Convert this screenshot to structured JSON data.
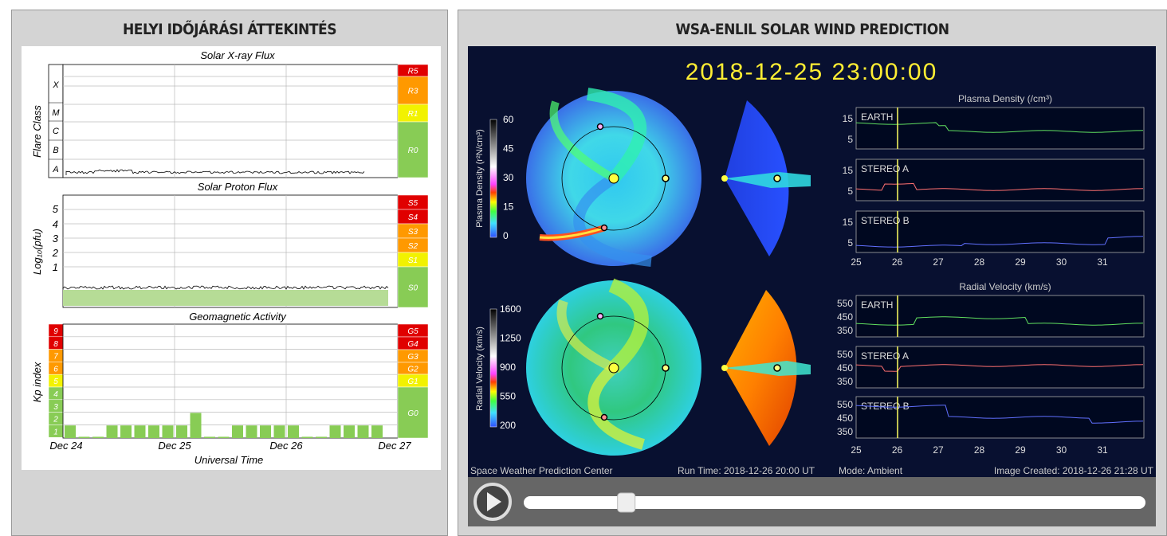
{
  "left_panel": {
    "title": "HELYI IDŐJÁRÁSI ÁTTEKINTÉS",
    "xray": {
      "title": "Solar X-ray Flux",
      "ylabel": "Flare Class",
      "classes": [
        "X",
        "M",
        "C",
        "B",
        "A"
      ],
      "scale": [
        "R5",
        "R3",
        "R1",
        "R0"
      ]
    },
    "proton": {
      "title": "Solar Proton Flux",
      "ylabel": "Log₁₀(pfu)",
      "ticks": [
        "5",
        "4",
        "3",
        "2",
        "1"
      ],
      "scale": [
        "S5",
        "S4",
        "S3",
        "S2",
        "S1",
        "S0"
      ]
    },
    "geomag": {
      "title": "Geomagnetic Activity",
      "ylabel": "Kp index",
      "levels": [
        "9",
        "8",
        "7",
        "6",
        "5",
        "4",
        "3",
        "2",
        "1"
      ],
      "scale": [
        "G5",
        "G4",
        "G3",
        "G2",
        "G1",
        "G0"
      ]
    },
    "x_ticks": [
      "Dec 24",
      "Dec 25",
      "Dec 26",
      "Dec 27"
    ],
    "xlabel": "Universal Time",
    "colors": {
      "red": "#e00000",
      "orange": "#ff9900",
      "yellow": "#f2f200",
      "green": "#88cc55"
    }
  },
  "right_panel": {
    "title": "WSA-ENLIL SOLAR WIND PREDICTION",
    "timestamp": "2018-12-25 23:00:00",
    "density_cbar": {
      "label": "Plasma Density (r²N/cm³)",
      "ticks": [
        "60",
        "45",
        "30",
        "15",
        "0"
      ]
    },
    "velocity_cbar": {
      "label": "Radial Velocity (km/s)",
      "ticks": [
        "1600",
        "1250",
        "900",
        "550",
        "200"
      ]
    },
    "density_title": "Plasma Density (/cm³)",
    "velocity_title": "Radial Velocity (km/s)",
    "density_rows": [
      {
        "name": "EARTH",
        "ticks": [
          "15",
          "5"
        ]
      },
      {
        "name": "STEREO A",
        "ticks": [
          "15",
          "5"
        ]
      },
      {
        "name": "STEREO B",
        "ticks": [
          "15",
          "5"
        ]
      }
    ],
    "velocity_rows": [
      {
        "name": "EARTH",
        "ticks": [
          "550",
          "450",
          "350"
        ]
      },
      {
        "name": "STEREO A",
        "ticks": [
          "550",
          "450",
          "350"
        ]
      },
      {
        "name": "STEREO B",
        "ticks": [
          "550",
          "450",
          "350"
        ]
      }
    ],
    "x_ticks": [
      "25",
      "26",
      "27",
      "28",
      "29",
      "30",
      "31"
    ],
    "footer": {
      "org": "Space Weather Prediction Center",
      "run": "Run Time: 2018-12-26 20:00 UT",
      "mode": "Mode: Ambient",
      "created": "Image Created: 2018-12-26 21:28 UT"
    },
    "player": {
      "progress": 0.165
    }
  }
}
